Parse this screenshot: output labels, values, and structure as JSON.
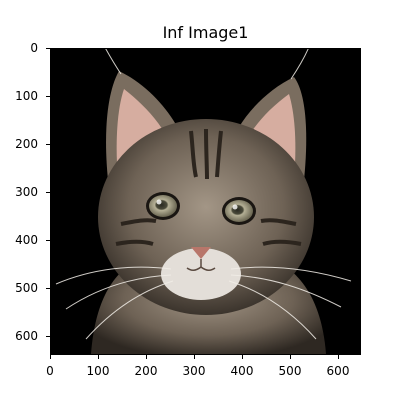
{
  "figure": {
    "title": "Inf Image1",
    "image": {
      "subject": "tabby kitten portrait on black background",
      "colors": {
        "background": "#000000",
        "fur_light": "#b8ac9c",
        "fur_mid": "#7e7264",
        "fur_dark": "#3a322a",
        "ear_inner": "#d9b0a4",
        "eye": "#a8a289",
        "nose": "#b8766a",
        "muzzle": "#e6e1dc"
      }
    },
    "x_axis": {
      "ticks": [
        "0",
        "100",
        "200",
        "300",
        "400",
        "500",
        "600"
      ],
      "range": [
        0,
        650
      ]
    },
    "y_axis": {
      "ticks": [
        "0",
        "100",
        "200",
        "300",
        "400",
        "500",
        "600"
      ],
      "range": [
        0,
        640
      ]
    }
  }
}
